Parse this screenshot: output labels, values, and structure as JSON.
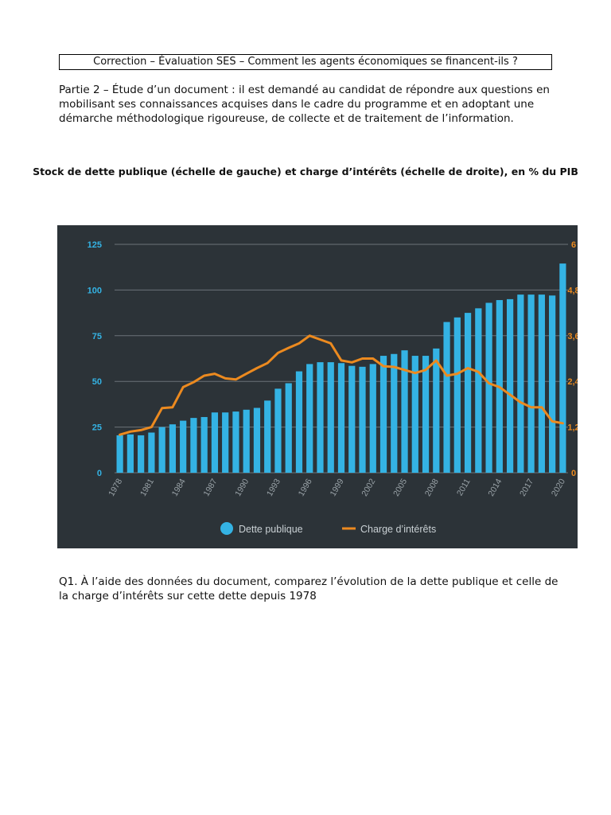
{
  "document": {
    "header": "Correction – Évaluation SES – Comment les agents économiques se financent-ils ?",
    "intro": "Partie 2 – Étude d’un document : il est demandé au candidat de répondre aux questions en mobilisant ses connaissances acquises dans le cadre du programme et en adoptant une démarche méthodologique rigoureuse, de collecte et de traitement de l’information.",
    "question": "Q1. À l’aide des données du document, comparez l’évolution de la dette publique et celle de la charge d’intérêts sur cette dette depuis 1978"
  },
  "chart_data": {
    "type": "bar",
    "title": "Stock de dette publique (échelle de gauche) et charge d’intérêts (échelle de droite), en % du PIB",
    "x": [
      1978,
      1979,
      1980,
      1981,
      1982,
      1983,
      1984,
      1985,
      1986,
      1987,
      1988,
      1989,
      1990,
      1991,
      1992,
      1993,
      1994,
      1995,
      1996,
      1997,
      1998,
      1999,
      2000,
      2001,
      2002,
      2003,
      2004,
      2005,
      2006,
      2007,
      2008,
      2009,
      2010,
      2011,
      2012,
      2013,
      2014,
      2015,
      2016,
      2017,
      2018,
      2019,
      2020
    ],
    "x_tick_labels": [
      "1978",
      "1981",
      "1984",
      "1987",
      "1990",
      "1993",
      "1996",
      "1999",
      "2002",
      "2005",
      "2008",
      "2011",
      "2014",
      "2017",
      "2020"
    ],
    "y_left": {
      "range": [
        0,
        125
      ],
      "ticks": [
        "0",
        "25",
        "50",
        "75",
        "100",
        "125"
      ]
    },
    "y_right": {
      "range": [
        0,
        6
      ],
      "ticks": [
        "0",
        "1,2",
        "2,4",
        "3,6",
        "4,8",
        "6"
      ]
    },
    "grid": "horizontal",
    "legend_position": "bottom-center",
    "series": [
      {
        "name": "Dette publique",
        "kind": "bar",
        "axis": "left",
        "color": "#34b3e4",
        "values": [
          20.5,
          21,
          20.5,
          22,
          25,
          26.5,
          28.5,
          30,
          30.5,
          33,
          33,
          33.5,
          34.5,
          35.5,
          39.5,
          46,
          49,
          55.5,
          59.5,
          60.5,
          60.5,
          60,
          58.5,
          58,
          59.5,
          64,
          65,
          67,
          64,
          64,
          68,
          82.5,
          85,
          87.5,
          90,
          93,
          94.5,
          95,
          97.5,
          97.5,
          97.5,
          97,
          114.5
        ]
      },
      {
        "name": "Charge d’intérêts",
        "kind": "line",
        "axis": "right",
        "color": "#ec8a1f",
        "values": [
          1.0,
          1.08,
          1.12,
          1.2,
          1.7,
          1.72,
          2.25,
          2.38,
          2.55,
          2.6,
          2.48,
          2.45,
          2.6,
          2.75,
          2.88,
          3.15,
          3.28,
          3.4,
          3.6,
          3.5,
          3.4,
          2.95,
          2.9,
          3.0,
          3.0,
          2.8,
          2.78,
          2.7,
          2.62,
          2.7,
          2.95,
          2.55,
          2.6,
          2.75,
          2.65,
          2.35,
          2.25,
          2.05,
          1.85,
          1.72,
          1.72,
          1.35,
          1.3
        ]
      }
    ]
  }
}
